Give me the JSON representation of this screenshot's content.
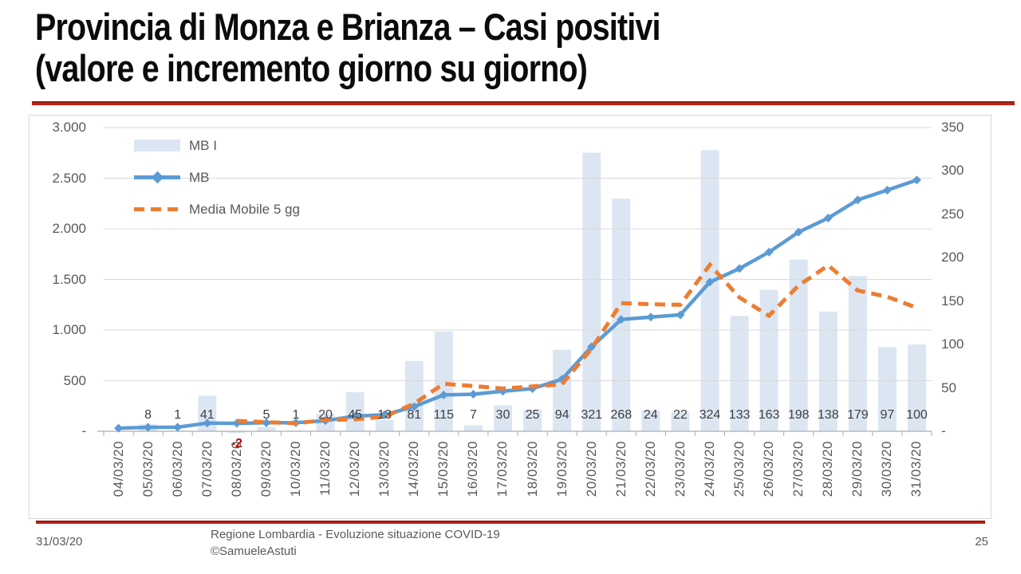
{
  "slide": {
    "title_line1": "Provincia di Monza e Brianza – Casi positivi",
    "title_line2": "(valore e incremento giorno su giorno)"
  },
  "footer": {
    "date": "31/03/20",
    "credit_line1": "Regione Lombardia - Evoluzione situazione COVID-19",
    "credit_line2": "©SamueleAstuti",
    "page_number": "25"
  },
  "chart_data": {
    "type": "combo",
    "categories": [
      "04/03/20",
      "05/03/20",
      "06/03/20",
      "07/03/20",
      "08/03/20",
      "09/03/20",
      "10/03/20",
      "11/03/20",
      "12/03/20",
      "13/03/20",
      "14/03/20",
      "15/03/20",
      "16/03/20",
      "17/03/20",
      "18/03/20",
      "19/03/20",
      "20/03/20",
      "21/03/20",
      "22/03/20",
      "23/03/20",
      "24/03/20",
      "25/03/20",
      "26/03/20",
      "27/03/20",
      "28/03/20",
      "29/03/20",
      "30/03/20",
      "31/03/20"
    ],
    "series": [
      {
        "name": "MB I",
        "type": "bar",
        "axis": "right",
        "color": "#dce6f2",
        "values": [
          null,
          8,
          1,
          41,
          -2,
          5,
          1,
          20,
          45,
          13,
          81,
          115,
          7,
          30,
          25,
          94,
          321,
          268,
          24,
          22,
          324,
          133,
          163,
          198,
          138,
          179,
          97,
          100
        ],
        "labels": [
          "",
          "8",
          "1",
          "41",
          "-2",
          "5",
          "1",
          "20",
          "45",
          "13",
          "81",
          "115",
          "7",
          "30",
          "25",
          "94",
          "321",
          "268",
          "24",
          "22",
          "324",
          "133",
          "163",
          "198",
          "138",
          "179",
          "97",
          "100"
        ]
      },
      {
        "name": "MB",
        "type": "line",
        "axis": "left",
        "marker": "diamond",
        "color": "#5b9bd5",
        "values": [
          31,
          39,
          40,
          81,
          79,
          84,
          85,
          105,
          150,
          163,
          244,
          359,
          366,
          396,
          421,
          515,
          836,
          1104,
          1128,
          1150,
          1474,
          1607,
          1770,
          1968,
          2106,
          2285,
          2382,
          2482
        ]
      },
      {
        "name": "Media Mobile 5 gg",
        "type": "line",
        "axis": "right",
        "dashed": true,
        "color": "#ed7d31",
        "values": [
          null,
          null,
          null,
          null,
          12,
          10.6,
          9.2,
          13,
          13.8,
          16.8,
          32,
          54.8,
          52.2,
          49.2,
          51.6,
          54.2,
          95.4,
          147.6,
          146.4,
          145.8,
          191.8,
          154.2,
          133.2,
          168,
          191.2,
          162.2,
          155,
          142.4
        ]
      }
    ],
    "left_axis": {
      "min": 0,
      "max": 3000,
      "tick_labels": [
        "3.000",
        "2.500",
        "2.000",
        "1.500",
        "1.000",
        "500",
        "-"
      ]
    },
    "right_axis": {
      "min": 0,
      "max": 350,
      "tick_labels": [
        "350",
        "300",
        "250",
        "200",
        "150",
        "100",
        "50",
        "-"
      ]
    },
    "grid": true,
    "legend_position": "inside-top-left",
    "colors": {
      "bar_fill": "#dce6f2",
      "mb_line": "#5b9bd5",
      "media_mobile_line": "#ed7d31",
      "negative_label": "#c00000",
      "gridline": "#d9d9d9",
      "axis_line": "#adadad",
      "axis_text": "#595959",
      "label_text": "#3f3f3f",
      "accent_rule": "#c00000"
    }
  }
}
